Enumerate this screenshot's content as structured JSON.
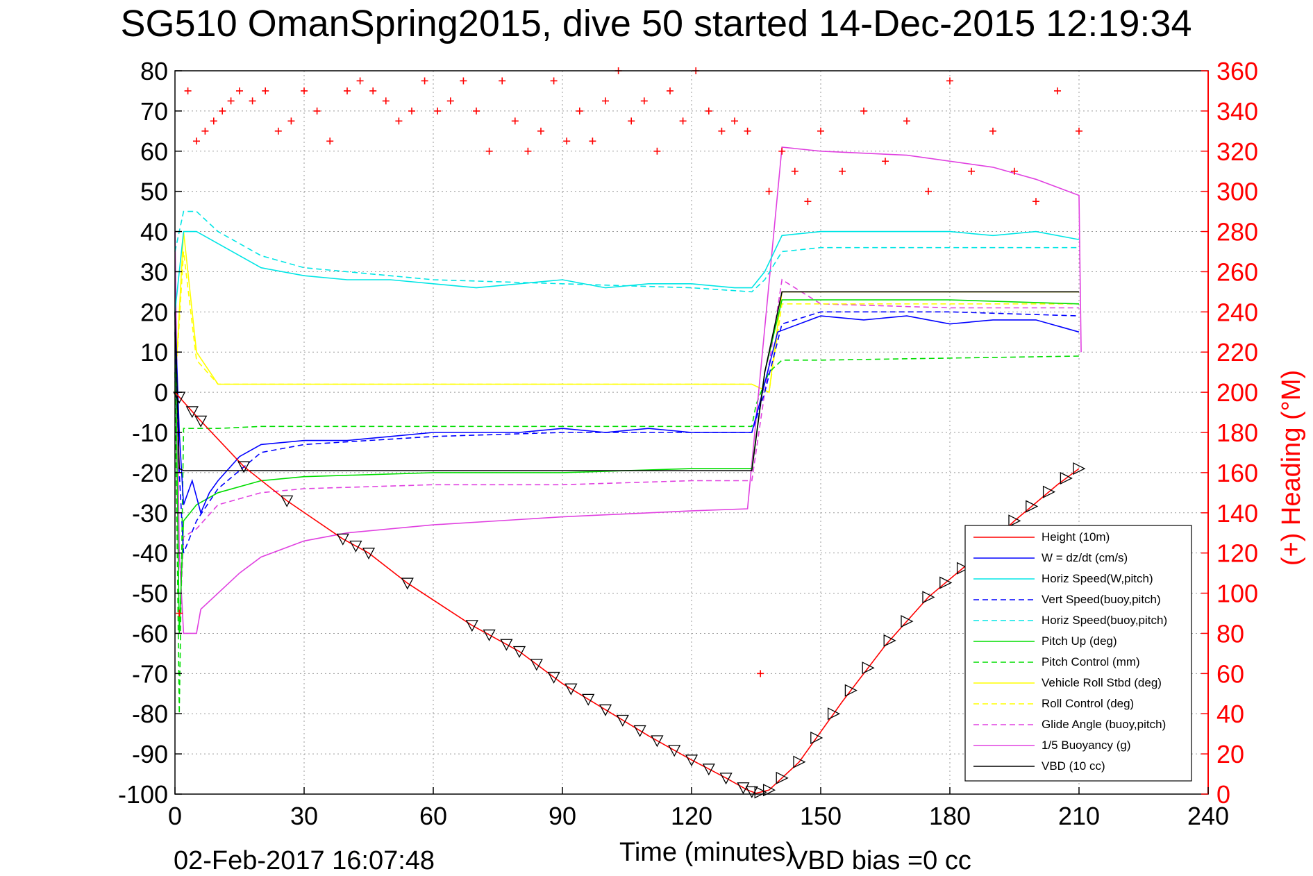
{
  "chart_data": {
    "type": "line",
    "title": "SG510 OmanSpring2015, dive 50 started 14-Dec-2015 12:19:34",
    "xlabel": "Time (minutes)",
    "ylabel_right": "(+) Heading (°M)",
    "xlim": [
      0,
      240
    ],
    "ylim": [
      -100,
      80
    ],
    "ylim_right": [
      0,
      360
    ],
    "x_ticks": [
      0,
      30,
      60,
      90,
      120,
      150,
      180,
      210,
      240
    ],
    "y_ticks": [
      -100,
      -90,
      -80,
      -70,
      -60,
      -50,
      -40,
      -30,
      -20,
      -10,
      0,
      10,
      20,
      30,
      40,
      50,
      60,
      70,
      80
    ],
    "y_ticks_right": [
      0,
      20,
      40,
      60,
      80,
      100,
      120,
      140,
      160,
      180,
      200,
      220,
      240,
      260,
      280,
      300,
      320,
      340,
      360
    ],
    "grid": true,
    "legend_position": "bottom-right",
    "series": [
      {
        "name": "Height (10m)",
        "color": "#ff0000",
        "style": "solid",
        "x": [
          0,
          5,
          16,
          26,
          39,
          45,
          54,
          69,
          80,
          90,
          100,
          110,
          120,
          128,
          133,
          135,
          138,
          140,
          145,
          155,
          165,
          175,
          185,
          195,
          205,
          210
        ],
        "y": [
          0,
          -6,
          -18.5,
          -27,
          -36.5,
          -40,
          -47.5,
          -58,
          -64.5,
          -72.5,
          -79,
          -85.5,
          -91.5,
          -96,
          -99,
          -99.8,
          -99,
          -97,
          -92,
          -77,
          -63,
          -51,
          -42,
          -32,
          -23,
          -19
        ]
      },
      {
        "name": "W = dz/dt (cm/s)",
        "color": "#0000ff",
        "style": "solid",
        "x": [
          0,
          1,
          2,
          4,
          6,
          8,
          10,
          15,
          20,
          30,
          40,
          50,
          60,
          70,
          80,
          90,
          100,
          110,
          120,
          130,
          134,
          136,
          140,
          150,
          160,
          170,
          180,
          190,
          200,
          210
        ],
        "y": [
          20,
          -10,
          -28,
          -22,
          -30,
          -25,
          -22,
          -16,
          -13,
          -12,
          -12,
          -11,
          -10,
          -10,
          -10,
          -9,
          -10,
          -9,
          -10,
          -10,
          -10,
          -2,
          15,
          19,
          18,
          19,
          17,
          18,
          18,
          15
        ]
      },
      {
        "name": "Horiz Speed(W,pitch)",
        "color": "#00e5e5",
        "style": "solid",
        "x": [
          0,
          2,
          5,
          10,
          20,
          30,
          40,
          50,
          60,
          70,
          80,
          90,
          100,
          110,
          120,
          130,
          134,
          137,
          141,
          150,
          160,
          170,
          180,
          190,
          200,
          210
        ],
        "y": [
          20,
          40,
          40,
          37,
          31,
          29,
          28,
          28,
          27,
          26,
          27,
          28,
          26,
          27,
          27,
          26,
          26,
          30,
          39,
          40,
          40,
          40,
          40,
          39,
          40,
          38
        ]
      },
      {
        "name": "Vert Speed(buoy,pitch)",
        "color": "#0000ff",
        "style": "dashed",
        "x": [
          0,
          1,
          2,
          5,
          10,
          20,
          30,
          60,
          90,
          120,
          134,
          137,
          141,
          150,
          180,
          210
        ],
        "y": [
          15,
          -20,
          -40,
          -32,
          -24,
          -15,
          -13,
          -11,
          -10,
          -10,
          -10,
          0,
          17,
          20,
          20,
          19
        ]
      },
      {
        "name": "Horiz Speed(buoy,pitch)",
        "color": "#00e5e5",
        "style": "dashed",
        "x": [
          0,
          2,
          5,
          10,
          20,
          30,
          60,
          90,
          120,
          134,
          137,
          141,
          150,
          180,
          210
        ],
        "y": [
          35,
          45,
          45,
          40,
          34,
          31,
          28,
          27,
          26,
          25,
          28,
          35,
          36,
          36,
          36
        ]
      },
      {
        "name": "Pitch Up (deg)",
        "color": "#00dd00",
        "style": "solid",
        "x": [
          0,
          1,
          2,
          5,
          10,
          20,
          30,
          60,
          90,
          120,
          134,
          137,
          141,
          150,
          180,
          210
        ],
        "y": [
          20,
          -60,
          -32,
          -28,
          -25,
          -22,
          -21,
          -20,
          -20,
          -19,
          -19,
          5,
          23,
          23,
          23,
          22
        ]
      },
      {
        "name": "Pitch Control (mm)",
        "color": "#00dd00",
        "style": "dashed",
        "x": [
          0,
          1,
          2,
          5,
          10,
          20,
          134,
          135,
          138,
          141,
          150,
          210
        ],
        "y": [
          5,
          -80,
          -9,
          -9,
          -9,
          -8.5,
          -8.5,
          -3,
          5,
          8,
          8,
          9
        ]
      },
      {
        "name": "Vehicle Roll Stbd (deg)",
        "color": "#ffff00",
        "style": "solid",
        "x": [
          0,
          2,
          5,
          10,
          30,
          60,
          90,
          120,
          134,
          138,
          141,
          150,
          180,
          210
        ],
        "y": [
          0,
          40,
          10,
          2,
          2,
          2,
          2,
          2,
          2,
          0,
          25,
          25,
          25,
          25
        ]
      },
      {
        "name": "Roll Control (deg)",
        "color": "#ffff00",
        "style": "dashed",
        "x": [
          0,
          2,
          5,
          10,
          30,
          60,
          90,
          120,
          134,
          138,
          141,
          150,
          180,
          210
        ],
        "y": [
          0,
          35,
          8,
          2,
          2,
          2,
          2,
          2,
          2,
          0,
          22,
          22,
          22,
          22
        ]
      },
      {
        "name": "Glide Angle (buoy,pitch)",
        "color": "#e040e0",
        "style": "dashed",
        "x": [
          0,
          1,
          2,
          5,
          10,
          20,
          30,
          60,
          90,
          120,
          134,
          137,
          141,
          150,
          180,
          210
        ],
        "y": [
          18,
          -60,
          -36,
          -34,
          -28,
          -25,
          -24,
          -23,
          -23,
          -22,
          -22,
          0,
          28,
          22,
          21,
          21
        ]
      },
      {
        "name": "1/5 Buoyancy (g)",
        "color": "#e040e0",
        "style": "solid",
        "x": [
          0,
          1,
          2,
          5,
          6,
          10,
          15,
          20,
          30,
          40,
          60,
          90,
          120,
          133,
          141,
          150,
          170,
          190,
          200,
          210,
          210.5
        ],
        "y": [
          40,
          -40,
          -60,
          -60,
          -54,
          -50,
          -45,
          -41,
          -37,
          -35,
          -33,
          -31,
          -29.5,
          -29,
          61,
          60,
          59,
          56,
          53,
          49,
          10
        ]
      },
      {
        "name": "VBD (10 cc)",
        "color": "#000000",
        "style": "solid",
        "x": [
          0,
          1,
          2,
          133,
          134,
          137,
          141,
          210
        ],
        "y": [
          20,
          -19,
          -19.5,
          -19.5,
          -19.5,
          5,
          25,
          25
        ]
      }
    ],
    "heading": {
      "name": "(+) Heading",
      "color": "#ff0000",
      "marker": "+",
      "x": [
        1,
        3,
        5,
        7,
        9,
        11,
        13,
        15,
        18,
        21,
        24,
        27,
        30,
        33,
        36,
        40,
        43,
        46,
        49,
        52,
        55,
        58,
        61,
        64,
        67,
        70,
        73,
        76,
        79,
        82,
        85,
        88,
        91,
        94,
        97,
        100,
        103,
        106,
        109,
        112,
        115,
        118,
        121,
        124,
        127,
        130,
        133,
        136,
        138,
        141,
        144,
        147,
        150,
        155,
        160,
        165,
        170,
        175,
        180,
        185,
        190,
        195,
        200,
        205,
        210
      ],
      "y": [
        90,
        350,
        325,
        330,
        335,
        340,
        345,
        350,
        345,
        350,
        330,
        335,
        350,
        340,
        325,
        350,
        355,
        350,
        345,
        335,
        340,
        355,
        340,
        345,
        355,
        340,
        320,
        355,
        335,
        320,
        330,
        355,
        325,
        340,
        325,
        345,
        360,
        335,
        345,
        320,
        350,
        335,
        360,
        340,
        330,
        335,
        330,
        60,
        300,
        320,
        310,
        295,
        330,
        310,
        340,
        315,
        335,
        300,
        355,
        310,
        330,
        310,
        295,
        350,
        330
      ]
    },
    "markers_on_height": {
      "marker": "triangle",
      "x": [
        1,
        4,
        6,
        16,
        26,
        39,
        42,
        45,
        54,
        69,
        73,
        77,
        80,
        84,
        88,
        92,
        96,
        100,
        104,
        108,
        112,
        116,
        120,
        124,
        128,
        132,
        134,
        136,
        138,
        141,
        145,
        149,
        153,
        157,
        161,
        166,
        170,
        175,
        179,
        183,
        195,
        199,
        203,
        207,
        210
      ]
    }
  },
  "footer": {
    "timestamp": "02-Feb-2017 16:07:48",
    "vbd_bias": "VBD bias =0 cc"
  }
}
